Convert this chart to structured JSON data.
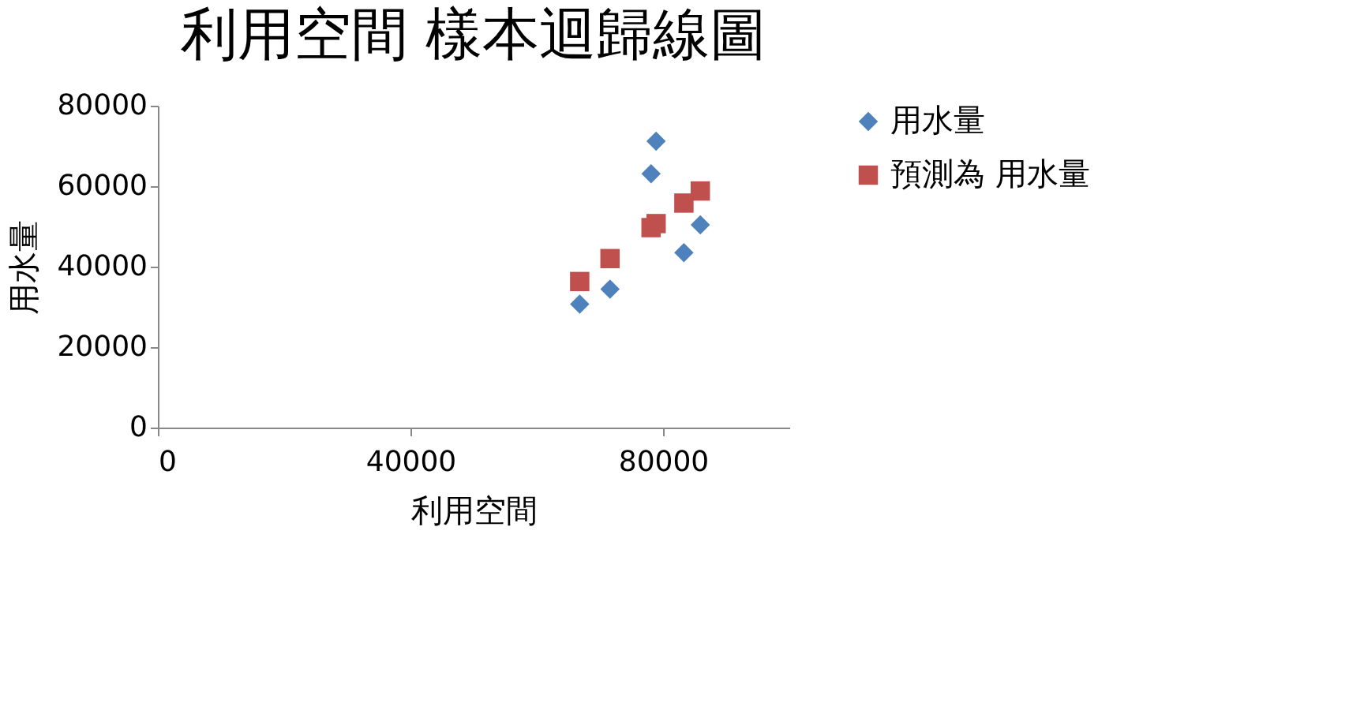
{
  "chart_data": {
    "type": "scatter",
    "title": "利用空間 樣本迴歸線圖",
    "xlabel": "利用空間",
    "ylabel": "用水量",
    "xlim": [
      0,
      100000
    ],
    "xticks": [
      0,
      40000,
      80000
    ],
    "ylim": [
      0,
      80000
    ],
    "yticks": [
      0,
      20000,
      40000,
      60000,
      80000
    ],
    "grid": false,
    "legend": "right",
    "series": [
      {
        "name": "用水量",
        "color": "#4f81bd",
        "marker": "diamond",
        "x": [
          66800,
          71600,
          78100,
          78900,
          83300,
          85900
        ],
        "values": [
          30700,
          34400,
          63100,
          71200,
          43500,
          50400
        ]
      },
      {
        "name": "預測為 用水量",
        "color": "#c0504d",
        "marker": "square",
        "x": [
          66800,
          71600,
          78100,
          78900,
          83300,
          85900
        ],
        "values": [
          36300,
          42000,
          49700,
          50700,
          55800,
          58800
        ]
      }
    ]
  }
}
